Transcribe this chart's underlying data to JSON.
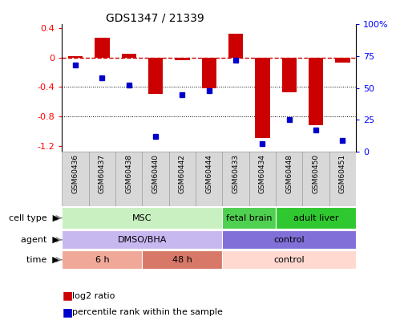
{
  "title": "GDS1347 / 21339",
  "samples": [
    "GSM60436",
    "GSM60437",
    "GSM60438",
    "GSM60440",
    "GSM60442",
    "GSM60444",
    "GSM60433",
    "GSM60434",
    "GSM60448",
    "GSM60450",
    "GSM60451"
  ],
  "log2_ratio": [
    0.02,
    0.27,
    0.05,
    -0.5,
    -0.04,
    -0.42,
    0.32,
    -1.1,
    -0.47,
    -0.92,
    -0.07
  ],
  "percentile_rank": [
    68,
    58,
    52,
    12,
    45,
    48,
    72,
    6,
    25,
    17,
    9
  ],
  "ylim_left": [
    -1.28,
    0.45
  ],
  "ylim_right": [
    0,
    100
  ],
  "left_ticks": [
    0.4,
    0.0,
    -0.4,
    -0.8,
    -1.2
  ],
  "left_tick_labels": [
    "0.4",
    "0",
    "-0.4",
    "-0.8",
    "-1.2"
  ],
  "right_ticks": [
    100,
    75,
    50,
    25,
    0
  ],
  "right_tick_labels": [
    "100%",
    "75",
    "50",
    "25",
    "0"
  ],
  "bar_color": "#cc0000",
  "dot_color": "#0000cc",
  "hline_color": "#cc0000",
  "grid_color": "#000000",
  "cell_type_labels": [
    {
      "label": "MSC",
      "start": 0,
      "end": 6,
      "color": "#c8f0c0"
    },
    {
      "label": "fetal brain",
      "start": 6,
      "end": 8,
      "color": "#50d050"
    },
    {
      "label": "adult liver",
      "start": 8,
      "end": 11,
      "color": "#30c830"
    }
  ],
  "agent_labels": [
    {
      "label": "DMSO/BHA",
      "start": 0,
      "end": 6,
      "color": "#c8b8f0"
    },
    {
      "label": "control",
      "start": 6,
      "end": 11,
      "color": "#8070d8"
    }
  ],
  "time_labels": [
    {
      "label": "6 h",
      "start": 0,
      "end": 3,
      "color": "#f0a898"
    },
    {
      "label": "48 h",
      "start": 3,
      "end": 6,
      "color": "#d87868"
    },
    {
      "label": "control",
      "start": 6,
      "end": 11,
      "color": "#ffd8d0"
    }
  ],
  "row_labels": [
    "cell type",
    "agent",
    "time"
  ],
  "sample_box_color": "#d8d8d8",
  "sample_box_edge": "#a0a0a0"
}
